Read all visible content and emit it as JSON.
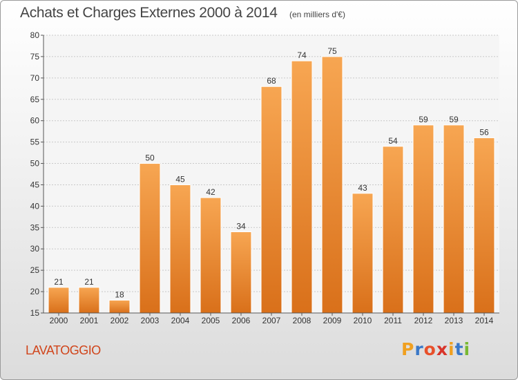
{
  "title": "Achats et Charges Externes 2000 à 2014",
  "subtitle": "(en milliers d'€)",
  "place": "LAVATOGGIO",
  "logo": {
    "letters": [
      "P",
      "r",
      "o",
      "x",
      "i",
      "t",
      "i"
    ],
    "colors": [
      "#f0a020",
      "#3a78c8",
      "#e8502a",
      "#d8342a",
      "#f0a020",
      "#3a78c8",
      "#78b832"
    ]
  },
  "chart_data": {
    "type": "bar",
    "categories": [
      "2000",
      "2001",
      "2002",
      "2003",
      "2004",
      "2005",
      "2006",
      "2007",
      "2008",
      "2009",
      "2010",
      "2011",
      "2012",
      "2013",
      "2014"
    ],
    "values": [
      21,
      21,
      18,
      50,
      45,
      42,
      34,
      68,
      74,
      75,
      43,
      54,
      59,
      59,
      56
    ],
    "ylim": [
      15,
      80
    ],
    "yticks": [
      15,
      20,
      25,
      30,
      35,
      40,
      45,
      50,
      55,
      60,
      65,
      70,
      75,
      80
    ],
    "grid": true,
    "bar_color": "#f0902c"
  }
}
